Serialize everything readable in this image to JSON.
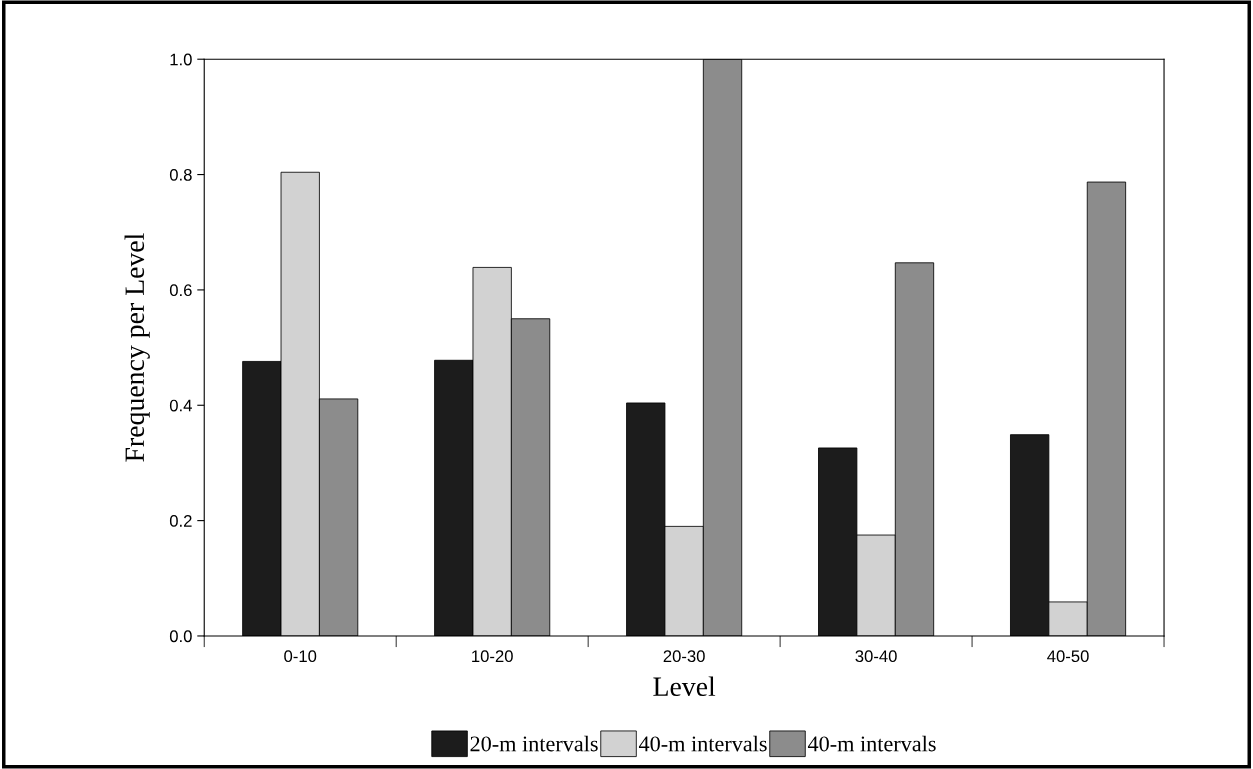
{
  "chart_data": {
    "type": "bar",
    "xlabel": "Level",
    "ylabel": "Frequency per Level",
    "categories": [
      "0-10",
      "10-20",
      "20-30",
      "30-40",
      "40-50"
    ],
    "series": [
      {
        "name": "20-m intervals",
        "color": "#1c1c1c",
        "values": [
          0.476,
          0.478,
          0.404,
          0.326,
          0.349
        ]
      },
      {
        "name": "40-m intervals",
        "color": "#d2d2d2",
        "values": [
          0.804,
          0.639,
          0.19,
          0.175,
          0.059
        ]
      },
      {
        "name": "40-m intervals",
        "color": "#8c8c8c",
        "values": [
          0.411,
          0.55,
          1.0,
          0.647,
          0.787
        ]
      }
    ],
    "ylim": [
      0,
      1.0
    ],
    "yticks": [
      {
        "value": 0,
        "label": "0.0"
      },
      {
        "value": 0.2,
        "label": "0.2"
      },
      {
        "value": 0.4,
        "label": "0.4"
      },
      {
        "value": 0.6,
        "label": "0.6"
      },
      {
        "value": 0.8,
        "label": "0.8"
      },
      {
        "value": 1.0,
        "label": "1.0"
      }
    ],
    "grid": false,
    "legend": "bottom"
  }
}
